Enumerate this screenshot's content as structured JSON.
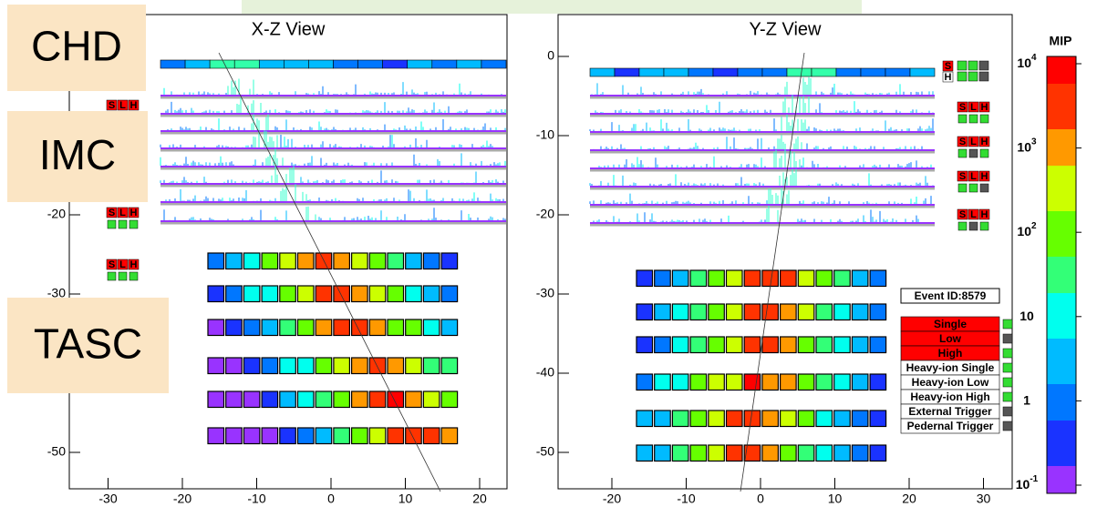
{
  "overlays": [
    "CHD",
    "IMC",
    "TASC"
  ],
  "panels": [
    {
      "title": "X-Z View",
      "xticks": [
        -30,
        -20,
        -10,
        0,
        10,
        20
      ],
      "yticks": [
        -20,
        -30,
        -50
      ]
    },
    {
      "title": "Y-Z View",
      "xticks": [
        -20,
        -10,
        0,
        10,
        20,
        30
      ],
      "yticks": [
        0,
        -10,
        -20,
        -30,
        -40,
        -50
      ]
    }
  ],
  "flags": {
    "s": "S",
    "l": "L",
    "h": "H"
  },
  "colorbar": {
    "title": "MIP",
    "ticks": [
      {
        "base": "10",
        "sup": "4"
      },
      {
        "base": "10",
        "sup": "3"
      },
      {
        "base": "10",
        "sup": "2"
      },
      {
        "base": "10"
      },
      {
        "base": "1"
      },
      {
        "base": "10",
        "sup": "-1"
      }
    ]
  },
  "event_id": "Event ID:8579",
  "triggers": [
    {
      "label": "Single",
      "active": true,
      "highlight": true
    },
    {
      "label": "Low",
      "active": false,
      "highlight": true
    },
    {
      "label": "High",
      "active": true,
      "highlight": true
    },
    {
      "label": "Heavy-ion Single",
      "active": true,
      "highlight": false
    },
    {
      "label": "Heavy-ion Low",
      "active": true,
      "highlight": false
    },
    {
      "label": "Heavy-ion High",
      "active": true,
      "highlight": false
    },
    {
      "label": "External Trigger",
      "active": false,
      "highlight": false
    },
    {
      "label": "Pedernal Trigger",
      "active": false,
      "highlight": false
    }
  ]
}
